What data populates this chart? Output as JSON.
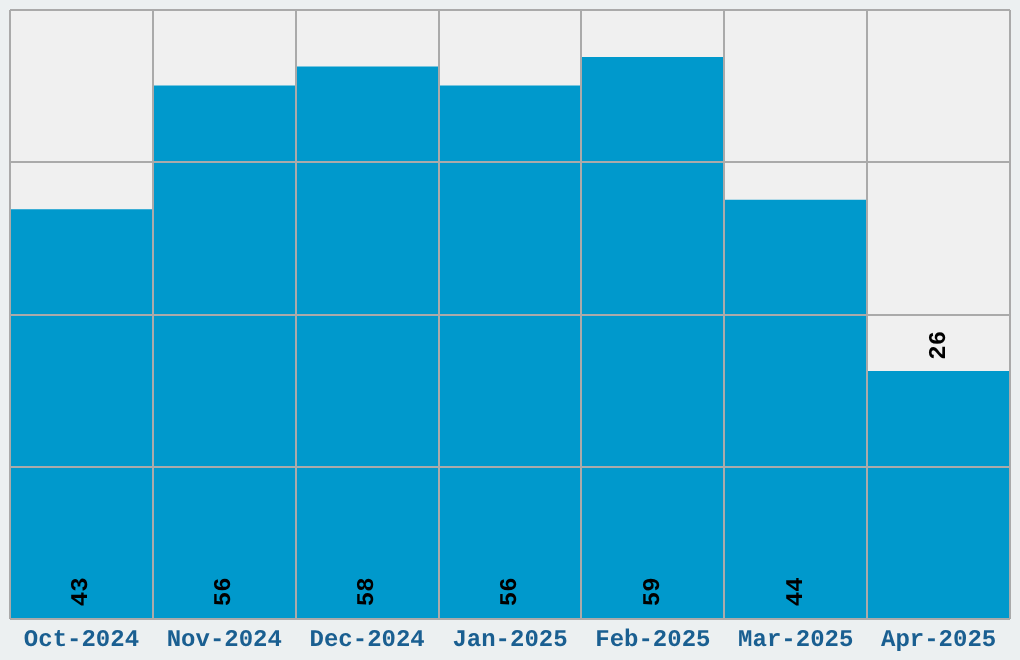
{
  "chart_data": {
    "type": "bar",
    "categories": [
      "Oct-2024",
      "Nov-2024",
      "Dec-2024",
      "Jan-2025",
      "Feb-2025",
      "Mar-2025",
      "Apr-2025"
    ],
    "values": [
      43,
      56,
      58,
      56,
      59,
      44,
      26
    ],
    "color": "#0099cc",
    "ylim": [
      0,
      64
    ],
    "yticks": [
      {
        "value": 0,
        "label": null
      },
      {
        "value": 16,
        "label": null
      },
      {
        "value": 32,
        "label": null
      },
      {
        "value": 48,
        "label": null
      },
      {
        "value": 64,
        "label": null
      }
    ],
    "tick_labels": "x",
    "grid": true,
    "data_labels": true
  }
}
